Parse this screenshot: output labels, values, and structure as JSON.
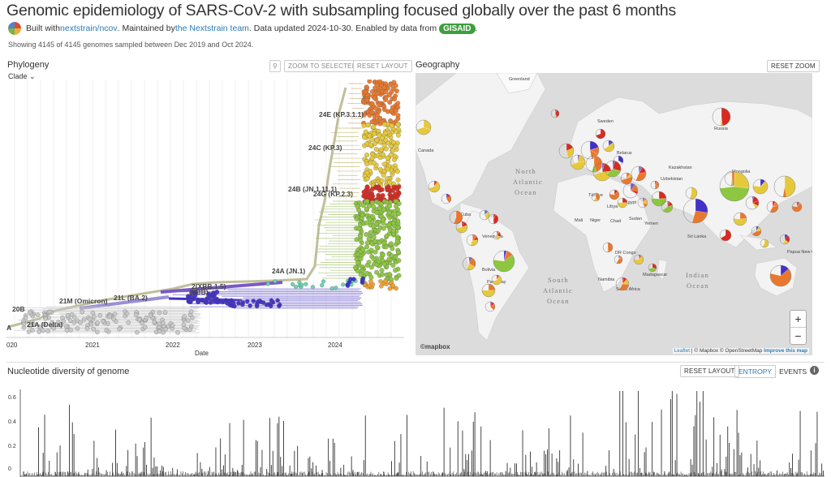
{
  "header": {
    "title": "Genomic epidemiology of SARS-CoV-2 with subsampling focused globally over the past 6 months",
    "built_with": "Built with ",
    "ncov_link": "nextstrain/ncov",
    "maintained_by": ". Maintained by ",
    "team_link": "the Nextstrain team",
    "updated": ". Data updated 2024-10-30. Enabled by data from ",
    "gisaid": "GISAID",
    "period": ".",
    "showing": "Showing 4145 of 4145 genomes sampled between Dec 2019 and Oct 2024."
  },
  "phylogeny": {
    "title": "Phylogeny",
    "color_by": "Clade",
    "zoom_selected": "ZOOM TO SELECTED",
    "reset_layout": "RESET LAYOUT",
    "x_axis_label": "Date",
    "x_ticks": [
      "020",
      "2021",
      "2022",
      "2023",
      "2024"
    ],
    "clade_labels": [
      "24E (KP.3.1.1)",
      "24C (KP.3)",
      "24B (JN.1.11.1)",
      "24G (KP.2.3)",
      "24A (JN.1)",
      "2(XBB.1.5)",
      "(XBB)",
      "21L (BA.2)",
      "21M (Omicron)",
      "20B",
      "21A (Delta)",
      "A"
    ]
  },
  "geography": {
    "title": "Geography",
    "reset_zoom": "RESET ZOOM",
    "labels": [
      "Greenland",
      "North",
      "Atlantic",
      "Ocean",
      "Canada",
      "South",
      "Atlantic",
      "Ocean",
      "Indian",
      "Ocean",
      "Sweden",
      "Russia",
      "Kazakhstan",
      "Mongolia",
      "Uzbekistan",
      "Türkiye",
      "Mali",
      "Niger",
      "Chad",
      "Sudan",
      "Yemen",
      "Cuba",
      "Venezuela",
      "Bolivia",
      "Paraguay",
      "Namibia",
      "South Africa",
      "Madagascar",
      "Sri Lanka",
      "Papua New Guinea",
      "Belarus",
      "Libya",
      "Egypt",
      "DR Congo"
    ],
    "zoom_in": "+",
    "zoom_out": "−",
    "attribution_leaflet": "Leaflet",
    "attribution_rest": " | © Mapbox © OpenStreetMap ",
    "attribution_improve": "Improve this map",
    "mapbox": "©mapbox"
  },
  "entropy": {
    "title": "Nucleotide diversity of genome",
    "reset_layout": "RESET LAYOUT",
    "entropy_tab": "ENTROPY",
    "events_tab": "EVENTS",
    "info_icon": "i",
    "y_ticks": [
      "0.6",
      "0.4",
      "0.2",
      "0"
    ]
  },
  "colors": {
    "accent": "#2b7ab5",
    "clade_24E": "#e8782d",
    "clade_24C": "#e6c93a",
    "clade_24G": "#d82a22",
    "clade_24A": "#8dc63f",
    "clade_21L": "#7b59c8",
    "clade_21M": "#4230c9",
    "clade_old": "#c8c8c8"
  }
}
